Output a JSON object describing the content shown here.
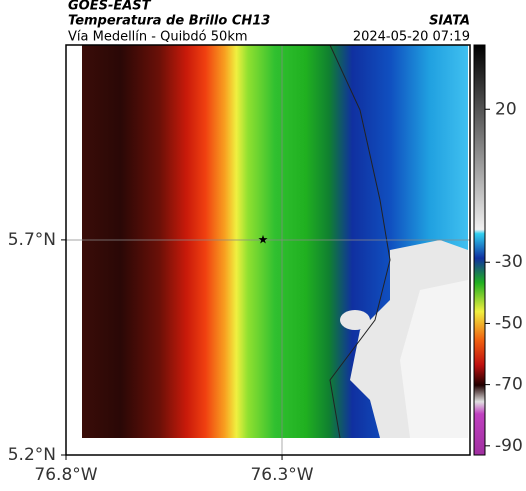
{
  "header": {
    "title": "GOES-EAST",
    "subtitle": "Temperatura de Brillo CH13",
    "route": "Vía Medellín - Quibdó 50km",
    "source": "SIATA",
    "timestamp": "2024-05-20 07:19"
  },
  "map": {
    "xlim": [
      -76.8,
      -75.865
    ],
    "ylim": [
      5.2,
      6.153
    ],
    "xticks": [
      {
        "value": -76.8,
        "label": "76.8°W"
      },
      {
        "value": -76.3,
        "label": "76.3°W"
      }
    ],
    "yticks": [
      {
        "value": 5.7,
        "label": "5.7°N"
      },
      {
        "value": 5.2,
        "label": "5.2°N"
      }
    ]
  },
  "colorbar": {
    "clim": [
      -93,
      41
    ],
    "ticks": [
      20,
      -30,
      -50,
      -70,
      -90
    ]
  }
}
